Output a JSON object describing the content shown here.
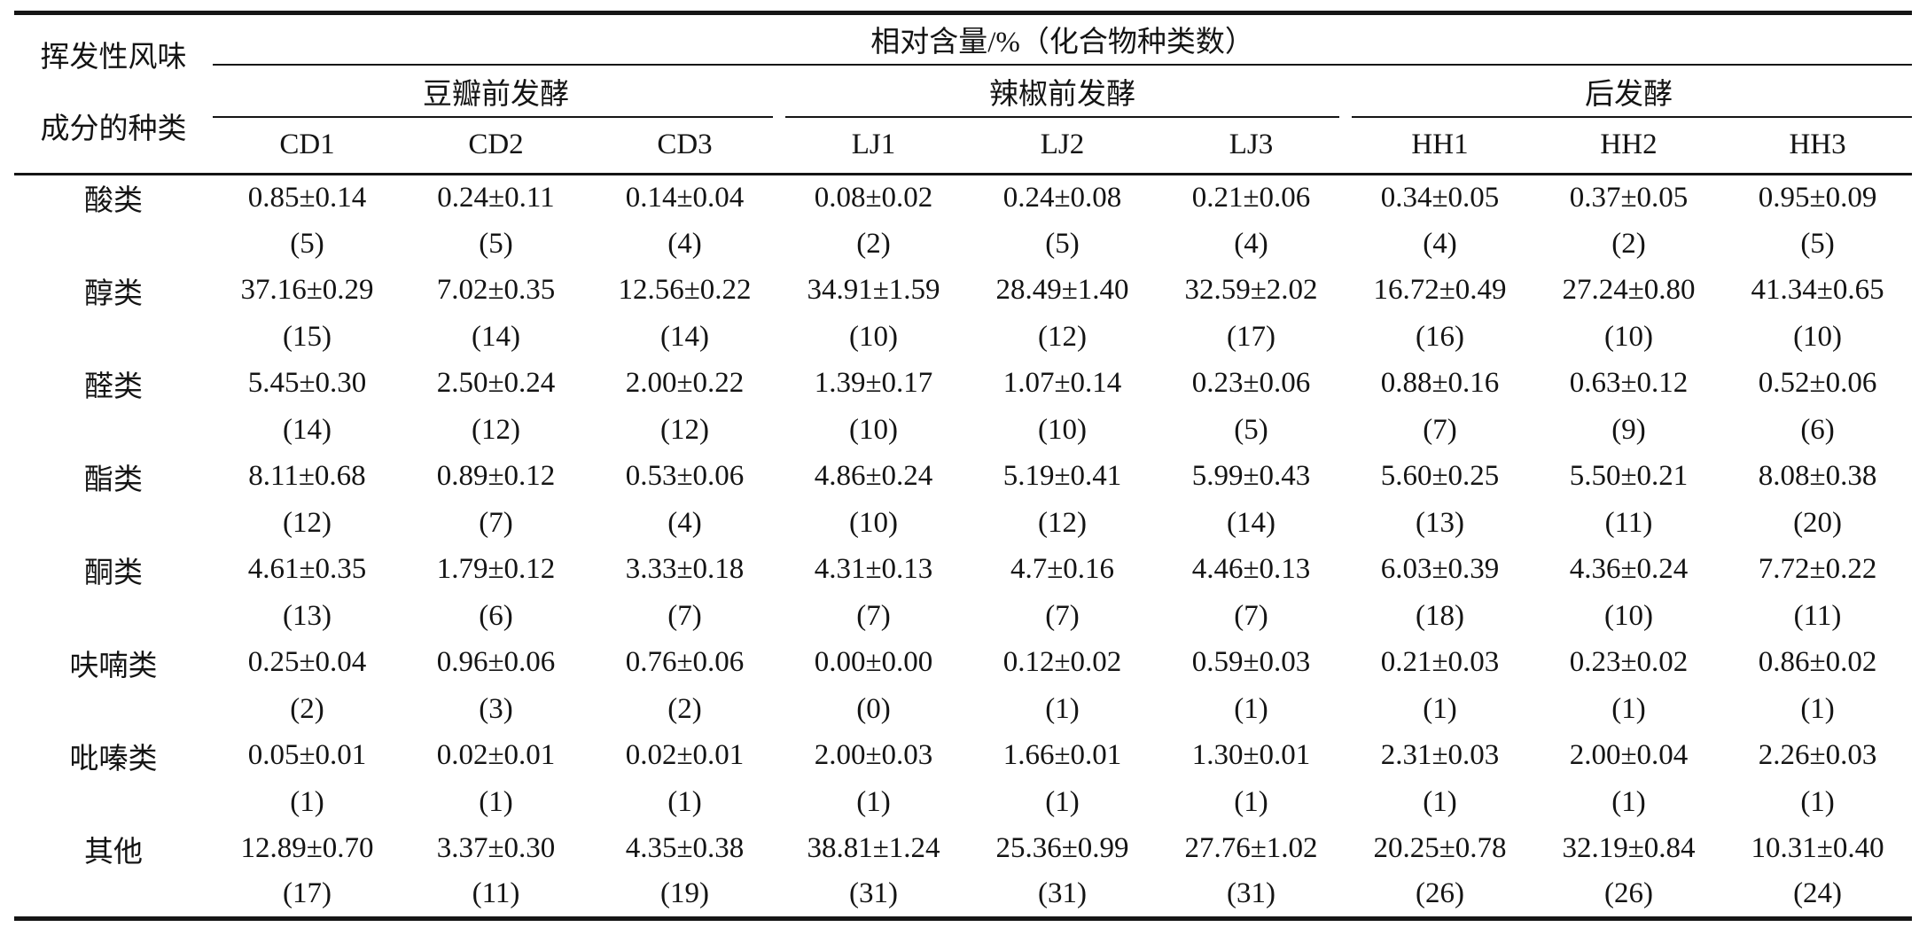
{
  "table": {
    "stub_header": {
      "line1": "挥发性风味",
      "line2": "成分的种类"
    },
    "top_header": "相对含量/%（化合物种类数）",
    "groups": [
      {
        "label": "豆瓣前发酵",
        "columns": [
          "CD1",
          "CD2",
          "CD3"
        ]
      },
      {
        "label": "辣椒前发酵",
        "columns": [
          "LJ1",
          "LJ2",
          "LJ3"
        ]
      },
      {
        "label": "后发酵",
        "columns": [
          "HH1",
          "HH2",
          "HH3"
        ]
      }
    ],
    "rows": [
      {
        "category": "酸类",
        "values": [
          "0.85±0.14",
          "0.24±0.11",
          "0.14±0.04",
          "0.08±0.02",
          "0.24±0.08",
          "0.21±0.06",
          "0.34±0.05",
          "0.37±0.05",
          "0.95±0.09"
        ],
        "counts": [
          "(5)",
          "(5)",
          "(4)",
          "(2)",
          "(5)",
          "(4)",
          "(4)",
          "(2)",
          "(5)"
        ]
      },
      {
        "category": "醇类",
        "values": [
          "37.16±0.29",
          "7.02±0.35",
          "12.56±0.22",
          "34.91±1.59",
          "28.49±1.40",
          "32.59±2.02",
          "16.72±0.49",
          "27.24±0.80",
          "41.34±0.65"
        ],
        "counts": [
          "(15)",
          "(14)",
          "(14)",
          "(10)",
          "(12)",
          "(17)",
          "(16)",
          "(10)",
          "(10)"
        ]
      },
      {
        "category": "醛类",
        "values": [
          "5.45±0.30",
          "2.50±0.24",
          "2.00±0.22",
          "1.39±0.17",
          "1.07±0.14",
          "0.23±0.06",
          "0.88±0.16",
          "0.63±0.12",
          "0.52±0.06"
        ],
        "counts": [
          "(14)",
          "(12)",
          "(12)",
          "(10)",
          "(10)",
          "(5)",
          "(7)",
          "(9)",
          "(6)"
        ]
      },
      {
        "category": "酯类",
        "values": [
          "8.11±0.68",
          "0.89±0.12",
          "0.53±0.06",
          "4.86±0.24",
          "5.19±0.41",
          "5.99±0.43",
          "5.60±0.25",
          "5.50±0.21",
          "8.08±0.38"
        ],
        "counts": [
          "(12)",
          "(7)",
          "(4)",
          "(10)",
          "(12)",
          "(14)",
          "(13)",
          "(11)",
          "(20)"
        ]
      },
      {
        "category": "酮类",
        "values": [
          "4.61±0.35",
          "1.79±0.12",
          "3.33±0.18",
          "4.31±0.13",
          "4.7±0.16",
          "4.46±0.13",
          "6.03±0.39",
          "4.36±0.24",
          "7.72±0.22"
        ],
        "counts": [
          "(13)",
          "(6)",
          "(7)",
          "(7)",
          "(7)",
          "(7)",
          "(18)",
          "(10)",
          "(11)"
        ]
      },
      {
        "category": "呋喃类",
        "values": [
          "0.25±0.04",
          "0.96±0.06",
          "0.76±0.06",
          "0.00±0.00",
          "0.12±0.02",
          "0.59±0.03",
          "0.21±0.03",
          "0.23±0.02",
          "0.86±0.02"
        ],
        "counts": [
          "(2)",
          "(3)",
          "(2)",
          "(0)",
          "(1)",
          "(1)",
          "(1)",
          "(1)",
          "(1)"
        ]
      },
      {
        "category": "吡嗪类",
        "values": [
          "0.05±0.01",
          "0.02±0.01",
          "0.02±0.01",
          "2.00±0.03",
          "1.66±0.01",
          "1.30±0.01",
          "2.31±0.03",
          "2.00±0.04",
          "2.26±0.03"
        ],
        "counts": [
          "(1)",
          "(1)",
          "(1)",
          "(1)",
          "(1)",
          "(1)",
          "(1)",
          "(1)",
          "(1)"
        ]
      },
      {
        "category": "其他",
        "values": [
          "12.89±0.70",
          "3.37±0.30",
          "4.35±0.38",
          "38.81±1.24",
          "25.36±0.99",
          "27.76±1.02",
          "20.25±0.78",
          "32.19±0.84",
          "10.31±0.40"
        ],
        "counts": [
          "(17)",
          "(11)",
          "(19)",
          "(31)",
          "(31)",
          "(31)",
          "(26)",
          "(26)",
          "(24)"
        ]
      }
    ]
  }
}
